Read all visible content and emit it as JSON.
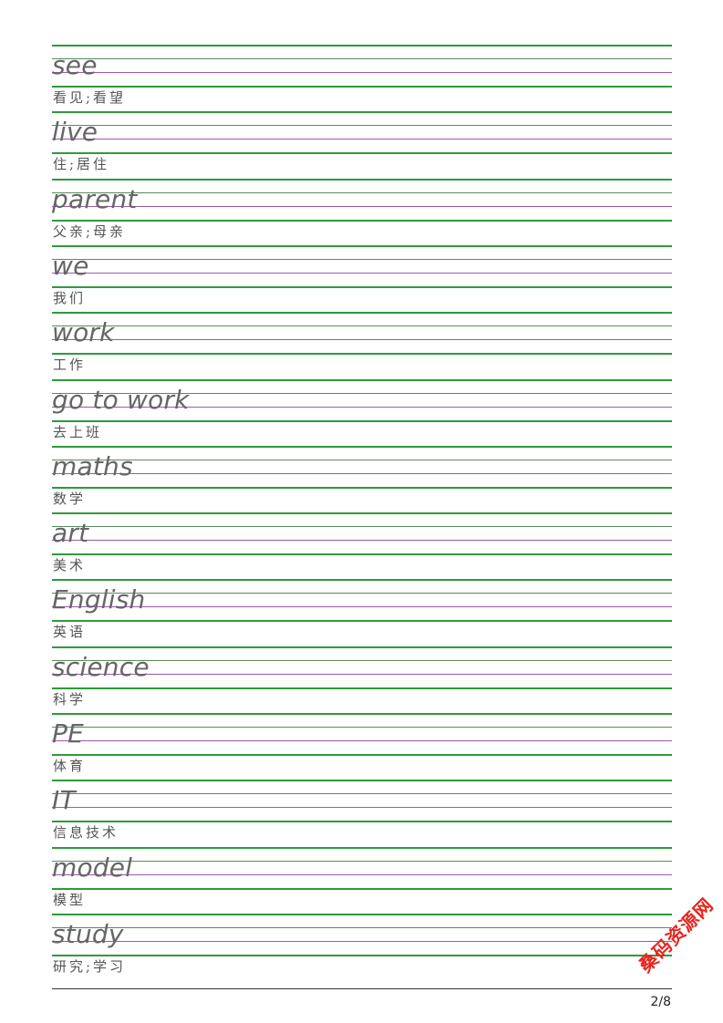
{
  "entries": [
    {
      "word": "see",
      "meaning": "看见;看望"
    },
    {
      "word": "live",
      "meaning": "住;居住"
    },
    {
      "word": "parent",
      "meaning": "父亲;母亲"
    },
    {
      "word": "we",
      "meaning": "我们"
    },
    {
      "word": "work",
      "meaning": "工作"
    },
    {
      "word": "go to work",
      "meaning": "去上班"
    },
    {
      "word": "maths",
      "meaning": "数学"
    },
    {
      "word": "art",
      "meaning": "美术"
    },
    {
      "word": "English",
      "meaning": "英语"
    },
    {
      "word": "science",
      "meaning": "科学"
    },
    {
      "word": "PE",
      "meaning": "体育"
    },
    {
      "word": "IT",
      "meaning": "信息技术"
    },
    {
      "word": "model",
      "meaning": "模型"
    },
    {
      "word": "study",
      "meaning": "研究;学习"
    }
  ],
  "footer": {
    "page": "2/8"
  },
  "watermark": "桑码资源网",
  "colors": {
    "guide_green": "#2e9a3a",
    "guide_purple": "#9a5aa8",
    "watermark": "#e8241c"
  }
}
